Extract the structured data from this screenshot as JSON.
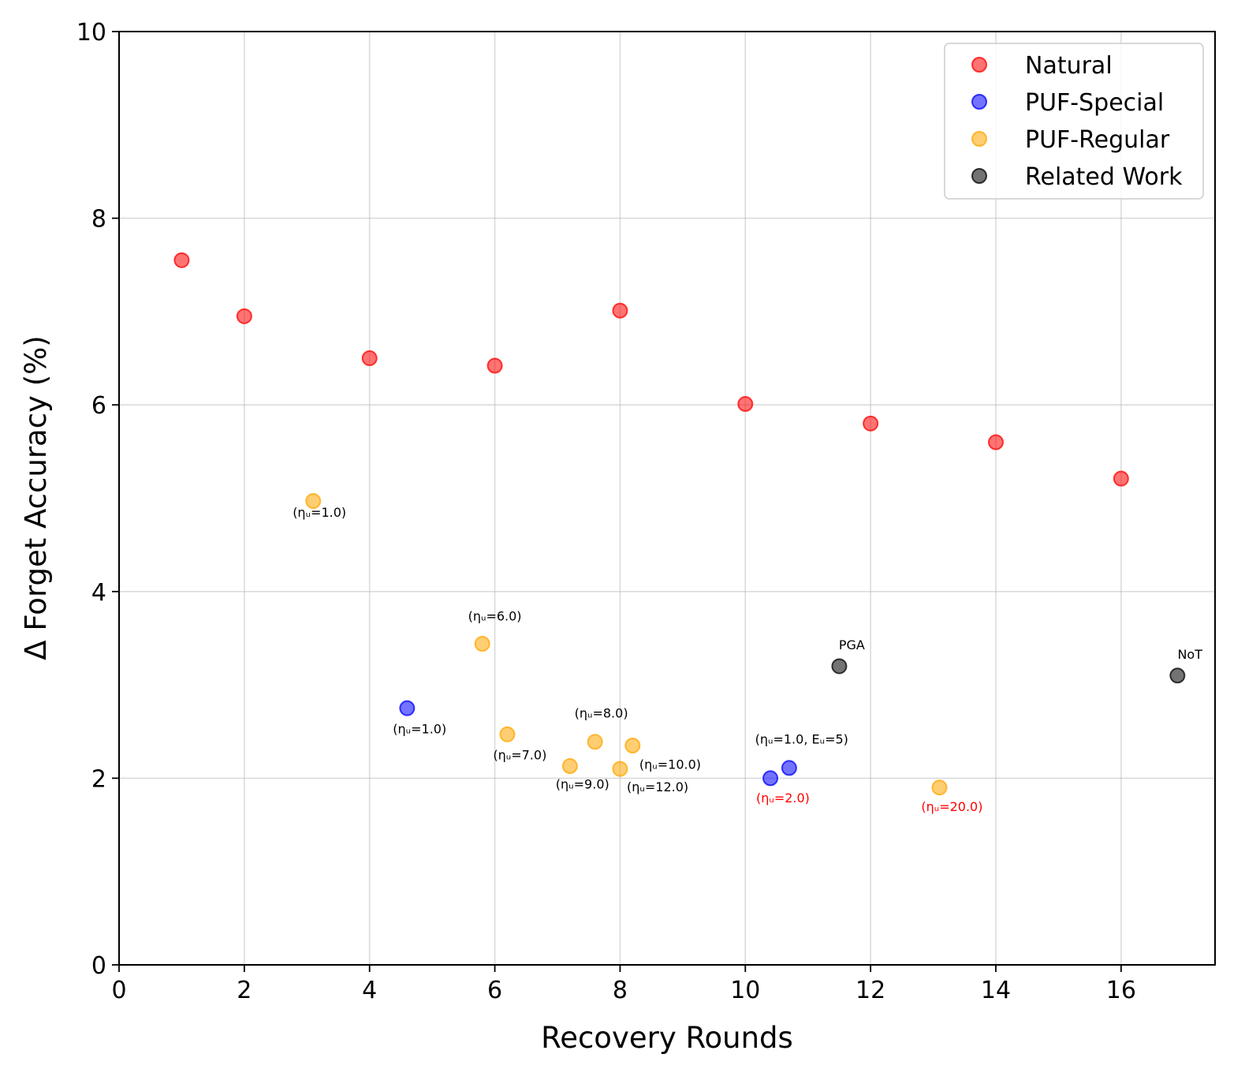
{
  "chart_data": {
    "type": "scatter",
    "title": "",
    "xlabel": "Recovery Rounds",
    "ylabel": "Δ Forget Accuracy (%)",
    "xlim": [
      0,
      17.5
    ],
    "ylim": [
      0,
      10
    ],
    "xticks": [
      0,
      2,
      4,
      6,
      8,
      10,
      12,
      14,
      16
    ],
    "yticks": [
      0,
      2,
      4,
      6,
      8,
      10
    ],
    "grid": true,
    "legend_position": "top-right",
    "series": [
      {
        "name": "Natural",
        "color": "#ff0000",
        "points": [
          {
            "x": 1,
            "y": 7.55
          },
          {
            "x": 2,
            "y": 6.95
          },
          {
            "x": 4,
            "y": 6.5
          },
          {
            "x": 6,
            "y": 6.42
          },
          {
            "x": 8,
            "y": 7.01
          },
          {
            "x": 10,
            "y": 6.01
          },
          {
            "x": 12,
            "y": 5.8
          },
          {
            "x": 14,
            "y": 5.6
          },
          {
            "x": 16,
            "y": 5.21
          }
        ]
      },
      {
        "name": "PUF-Special",
        "color": "#0000ff",
        "points": [
          {
            "x": 4.6,
            "y": 2.75
          },
          {
            "x": 10.4,
            "y": 2.0
          },
          {
            "x": 10.7,
            "y": 2.11
          }
        ]
      },
      {
        "name": "PUF-Regular",
        "color": "#ffa500",
        "points": [
          {
            "x": 3.1,
            "y": 4.97
          },
          {
            "x": 5.8,
            "y": 3.44
          },
          {
            "x": 6.2,
            "y": 2.47
          },
          {
            "x": 7.2,
            "y": 2.13
          },
          {
            "x": 7.6,
            "y": 2.39
          },
          {
            "x": 8.0,
            "y": 2.1
          },
          {
            "x": 8.2,
            "y": 2.35
          },
          {
            "x": 13.1,
            "y": 1.9
          }
        ]
      },
      {
        "name": "Related Work",
        "color": "#000000",
        "points": [
          {
            "x": 11.5,
            "y": 3.2
          },
          {
            "x": 16.9,
            "y": 3.1
          }
        ]
      }
    ],
    "annotations": [
      {
        "text": "(ηᵤ=1.0)",
        "x": 3.2,
        "y": 4.8,
        "color": "#000000",
        "anchor": "middle"
      },
      {
        "text": "(ηᵤ=6.0)",
        "x": 6.0,
        "y": 3.69,
        "color": "#000000",
        "anchor": "middle"
      },
      {
        "text": "(ηᵤ=1.0)",
        "x": 4.8,
        "y": 2.48,
        "color": "#000000",
        "anchor": "middle"
      },
      {
        "text": "(ηᵤ=7.0)",
        "x": 6.4,
        "y": 2.2,
        "color": "#000000",
        "anchor": "middle"
      },
      {
        "text": "(ηᵤ=8.0)",
        "x": 7.7,
        "y": 2.65,
        "color": "#000000",
        "anchor": "middle"
      },
      {
        "text": "(ηᵤ=9.0)",
        "x": 7.4,
        "y": 1.89,
        "color": "#000000",
        "anchor": "middle"
      },
      {
        "text": "(ηᵤ=10.0)",
        "x": 8.8,
        "y": 2.1,
        "color": "#000000",
        "anchor": "middle"
      },
      {
        "text": "(ηᵤ=12.0)",
        "x": 8.6,
        "y": 1.86,
        "color": "#000000",
        "anchor": "middle"
      },
      {
        "text": "(ηᵤ=1.0, Eᵤ=5)",
        "x": 10.9,
        "y": 2.37,
        "color": "#000000",
        "anchor": "middle"
      },
      {
        "text": "(ηᵤ=2.0)",
        "x": 10.6,
        "y": 1.74,
        "color": "#ff0000",
        "anchor": "middle"
      },
      {
        "text": "(ηᵤ=20.0)",
        "x": 13.3,
        "y": 1.65,
        "color": "#ff0000",
        "anchor": "middle"
      },
      {
        "text": "PGA",
        "x": 11.7,
        "y": 3.38,
        "color": "#000000",
        "anchor": "middle"
      },
      {
        "text": "NoT",
        "x": 17.1,
        "y": 3.28,
        "color": "#000000",
        "anchor": "middle"
      }
    ]
  }
}
